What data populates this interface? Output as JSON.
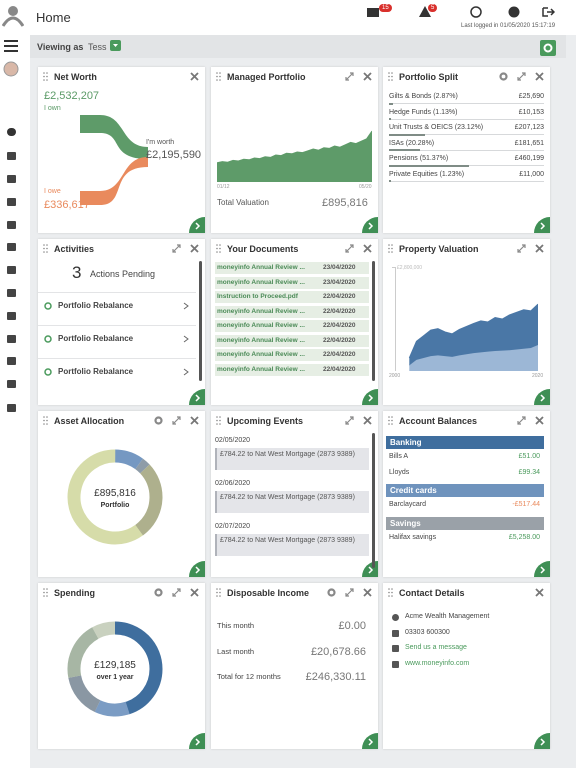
{
  "header": {
    "title": "Home",
    "mail_badge": "15",
    "alert_badge": "5",
    "last_logged": "Last logged in 01/05/2020 15:17:19"
  },
  "viewing": {
    "label": "Viewing as",
    "user": "Tess"
  },
  "net_worth": {
    "title": "Net Worth",
    "own": "£2,532,207",
    "own_label": "I own",
    "worth_label": "I'm worth",
    "worth": "£2,195,590",
    "owe_label": "I owe",
    "owe": "£336,617"
  },
  "managed_portfolio": {
    "title": "Managed Portfolio",
    "x_labels": [
      "01/12",
      "05/20"
    ],
    "values": [
      32,
      34,
      33,
      36,
      35,
      38,
      37,
      40,
      39,
      42,
      41,
      45,
      44,
      48,
      47,
      50,
      49,
      52,
      55,
      53,
      57,
      56,
      60,
      58,
      62,
      66,
      64,
      68,
      72,
      85
    ],
    "ylim": [
      0,
      100
    ],
    "color": "#5e9b69",
    "label": "Total Valuation",
    "total": "£895,816"
  },
  "portfolio_split": {
    "title": "Portfolio Split",
    "rows": [
      {
        "label": "Gilts & Bonds (2.87%)",
        "pct": 2.87,
        "value": "£25,690"
      },
      {
        "label": "Hedge Funds (1.13%)",
        "pct": 1.13,
        "value": "£10,153"
      },
      {
        "label": "Unit Trusts & OEICS (23.12%)",
        "pct": 23.12,
        "value": "£207,123"
      },
      {
        "label": "ISAs (20.28%)",
        "pct": 20.28,
        "value": "£181,651"
      },
      {
        "label": "Pensions (51.37%)",
        "pct": 51.37,
        "value": "£460,199"
      },
      {
        "label": "Private Equities (1.23%)",
        "pct": 1.23,
        "value": "£11,000"
      }
    ]
  },
  "activities": {
    "title": "Activities",
    "count": 3,
    "count_label": "Actions Pending",
    "items": [
      "Portfolio Rebalance",
      "Portfolio Rebalance",
      "Portfolio Rebalance"
    ]
  },
  "documents": {
    "title": "Your Documents",
    "rows": [
      {
        "name": "moneyinfo Annual Review ...",
        "date": "23/04/2020"
      },
      {
        "name": "moneyinfo Annual Review ...",
        "date": "23/04/2020"
      },
      {
        "name": "Instruction to Proceed.pdf",
        "date": "22/04/2020"
      },
      {
        "name": "moneyinfo Annual Review ...",
        "date": "22/04/2020"
      },
      {
        "name": "moneyinfo Annual Review ...",
        "date": "22/04/2020"
      },
      {
        "name": "moneyinfo Annual Review ...",
        "date": "22/04/2020"
      },
      {
        "name": "moneyinfo Annual Review ...",
        "date": "22/04/2020"
      },
      {
        "name": "moneyinfo Annual Review ...",
        "date": "22/04/2020"
      }
    ]
  },
  "property": {
    "title": "Property Valuation",
    "x": [
      2002,
      2003,
      2004,
      2005,
      2006,
      2007,
      2008,
      2009,
      2010,
      2011,
      2012,
      2013,
      2014,
      2015,
      2016,
      2017,
      2018,
      2019,
      2020
    ],
    "xlim": [
      2000,
      2020
    ],
    "xticks": [
      2000,
      2020
    ],
    "ylim": [
      0,
      2800000
    ],
    "yticks": [
      {
        "value": 2800000,
        "label": "£2,800,000"
      }
    ],
    "series": [
      {
        "color": "#9cb7d6",
        "values": [
          150000,
          300000,
          350000,
          400000,
          420000,
          400000,
          380000,
          420000,
          450000,
          480000,
          500000,
          520000,
          540000,
          550000,
          560000,
          580000,
          600000,
          620000,
          700000
        ]
      },
      {
        "color": "#4a77a6",
        "values": [
          200000,
          500000,
          600000,
          700000,
          720000,
          650000,
          620000,
          700000,
          750000,
          800000,
          850000,
          800000,
          900000,
          850000,
          950000,
          1000000,
          1050000,
          1000000,
          1100000
        ]
      }
    ]
  },
  "asset_allocation": {
    "title": "Asset Allocation",
    "value": "£895,816",
    "label": "Portfolio",
    "segments": [
      10,
      3,
      27,
      60
    ],
    "colors": [
      "#7598c2",
      "#8e9ca8",
      "#aeb08d",
      "#d6dca9"
    ]
  },
  "events": {
    "title": "Upcoming Events",
    "items": [
      {
        "date": "02/05/2020",
        "text": "£784.22 to Nat West Mortgage (2873 9389)"
      },
      {
        "date": "02/06/2020",
        "text": "£784.22 to Nat West Mortgage (2873 9389)"
      },
      {
        "date": "02/07/2020",
        "text": "£784.22 to Nat West Mortgage (2873 9389)"
      }
    ]
  },
  "balances": {
    "title": "Account Balances",
    "groups": [
      {
        "name": "Banking",
        "color": "#3f6e9e",
        "rows": [
          {
            "name": "Bills A",
            "value": "£51.00"
          },
          {
            "name": "Lloyds",
            "value": "£99.34"
          }
        ]
      },
      {
        "name": "Credit cards",
        "color": "#6f93bd",
        "rows": [
          {
            "name": "Barclaycard",
            "value": "-£517.44"
          }
        ]
      },
      {
        "name": "Savings",
        "color": "#9aa1a8",
        "rows": [
          {
            "name": "Halifax savings",
            "value": "£5,258.00"
          }
        ]
      }
    ]
  },
  "spending": {
    "title": "Spending",
    "value": "£129,185",
    "label": "over 1 year",
    "segments": [
      45,
      12,
      15,
      20,
      8
    ],
    "colors": [
      "#3f6e9e",
      "#7b9cc4",
      "#8a97a3",
      "#a7b6a4",
      "#c9d1bf"
    ]
  },
  "disposable": {
    "title": "Disposable Income",
    "rows": [
      {
        "label": "This month",
        "value": "£0.00"
      },
      {
        "label": "Last month",
        "value": "£20,678.66"
      },
      {
        "label": "Total for 12 months",
        "value": "£246,330.11"
      }
    ]
  },
  "contact": {
    "title": "Contact Details",
    "company": "Acme Wealth Management",
    "phone": "03303 600300",
    "message": "Send us a message",
    "website": "www.moneyinfo.com"
  }
}
